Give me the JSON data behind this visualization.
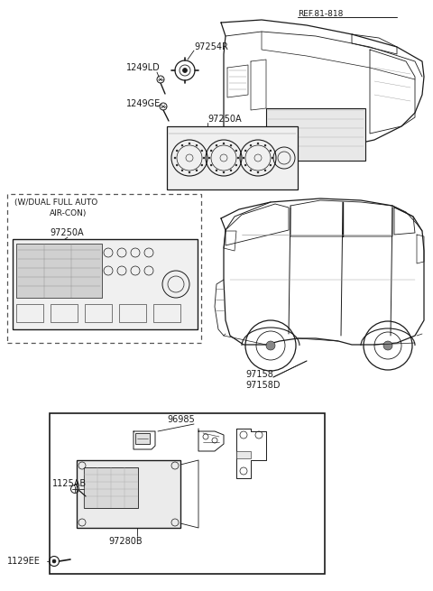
{
  "bg_color": "#ffffff",
  "fig_width": 4.8,
  "fig_height": 6.55,
  "dpi": 100,
  "labels": {
    "ref": "REF.81-818",
    "p97254R": "97254R",
    "p1249LD": "1249LD",
    "p1249GE": "1249GE",
    "p97250A_top": "97250A",
    "p97250A_box": "97250A",
    "box_line1": "(W/DUAL FULL AUTO",
    "box_line2": "AIR-CON)",
    "p97158": "97158",
    "p97158D": "97158D",
    "p96985": "96985",
    "p1125AB": "1125AB",
    "p97280B": "97280B",
    "p1129EE": "1129EE"
  },
  "lc": "#1a1a1a",
  "lw": 0.8,
  "fs": 6.8
}
